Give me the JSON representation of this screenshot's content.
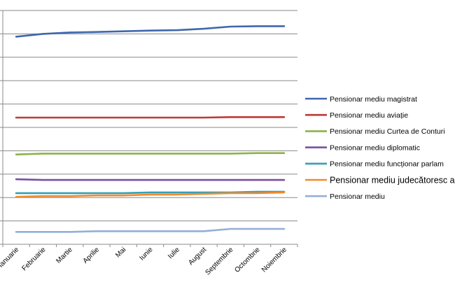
{
  "chart_data": {
    "type": "line",
    "title": "",
    "xlabel": "",
    "ylabel": "",
    "y_tick_labels_visible": false,
    "grid": "horizontal",
    "legend_position": "right",
    "categories": [
      "Ianuarie",
      "Februarie",
      "Martie",
      "Aprilie",
      "Mai",
      "Iunie",
      "Iulie",
      "August",
      "Septembrie",
      "Octombrie",
      "Noiembrie"
    ],
    "ylim": [
      0,
      10
    ],
    "series": [
      {
        "name": "Pensionar mediu magistrat",
        "color": "#3F67AD",
        "values": [
          8.88,
          9.0,
          9.06,
          9.08,
          9.11,
          9.14,
          9.16,
          9.22,
          9.31,
          9.33,
          9.33
        ]
      },
      {
        "name": "Pensionar mediu aviație",
        "color": "#BE3A36",
        "values": [
          5.42,
          5.42,
          5.42,
          5.42,
          5.42,
          5.42,
          5.42,
          5.42,
          5.44,
          5.44,
          5.44
        ]
      },
      {
        "name": "Pensionar mediu Curtea de Conturi",
        "color": "#8DB249",
        "values": [
          3.84,
          3.88,
          3.88,
          3.88,
          3.88,
          3.88,
          3.88,
          3.88,
          3.88,
          3.9,
          3.9
        ]
      },
      {
        "name": "Pensionar mediu diplomatic",
        "color": "#7A4FA0",
        "values": [
          2.78,
          2.75,
          2.75,
          2.75,
          2.75,
          2.75,
          2.75,
          2.75,
          2.75,
          2.75,
          2.75
        ]
      },
      {
        "name": "Pensionar mediu funcționar parlamentar",
        "color": "#34A0B4",
        "values": [
          2.19,
          2.19,
          2.19,
          2.19,
          2.19,
          2.22,
          2.22,
          2.22,
          2.22,
          2.25,
          2.25
        ]
      },
      {
        "name": "Pensionar mediu judecătoresc auxiliar",
        "color": "#F28A2E",
        "values": [
          2.03,
          2.06,
          2.06,
          2.09,
          2.09,
          2.13,
          2.13,
          2.16,
          2.19,
          2.19,
          2.22
        ]
      },
      {
        "name": "Pensionar mediu",
        "color": "#93AFD6",
        "values": [
          0.53,
          0.53,
          0.53,
          0.56,
          0.56,
          0.56,
          0.56,
          0.56,
          0.66,
          0.66,
          0.66
        ]
      }
    ],
    "legend_entries": [
      {
        "label": "Pensionar mediu magistrat",
        "size": "normal"
      },
      {
        "label": "Pensionar mediu aviație",
        "size": "normal"
      },
      {
        "label": "Pensionar mediu Curtea de Conturi",
        "size": "normal"
      },
      {
        "label": "Pensionar mediu diplomatic",
        "size": "normal"
      },
      {
        "label": "Pensionar mediu funcționar parlam",
        "size": "normal"
      },
      {
        "label": "Pensionar mediu judecătoresc a",
        "size": "large"
      },
      {
        "label": "Pensionar mediu",
        "size": "normal"
      }
    ]
  }
}
